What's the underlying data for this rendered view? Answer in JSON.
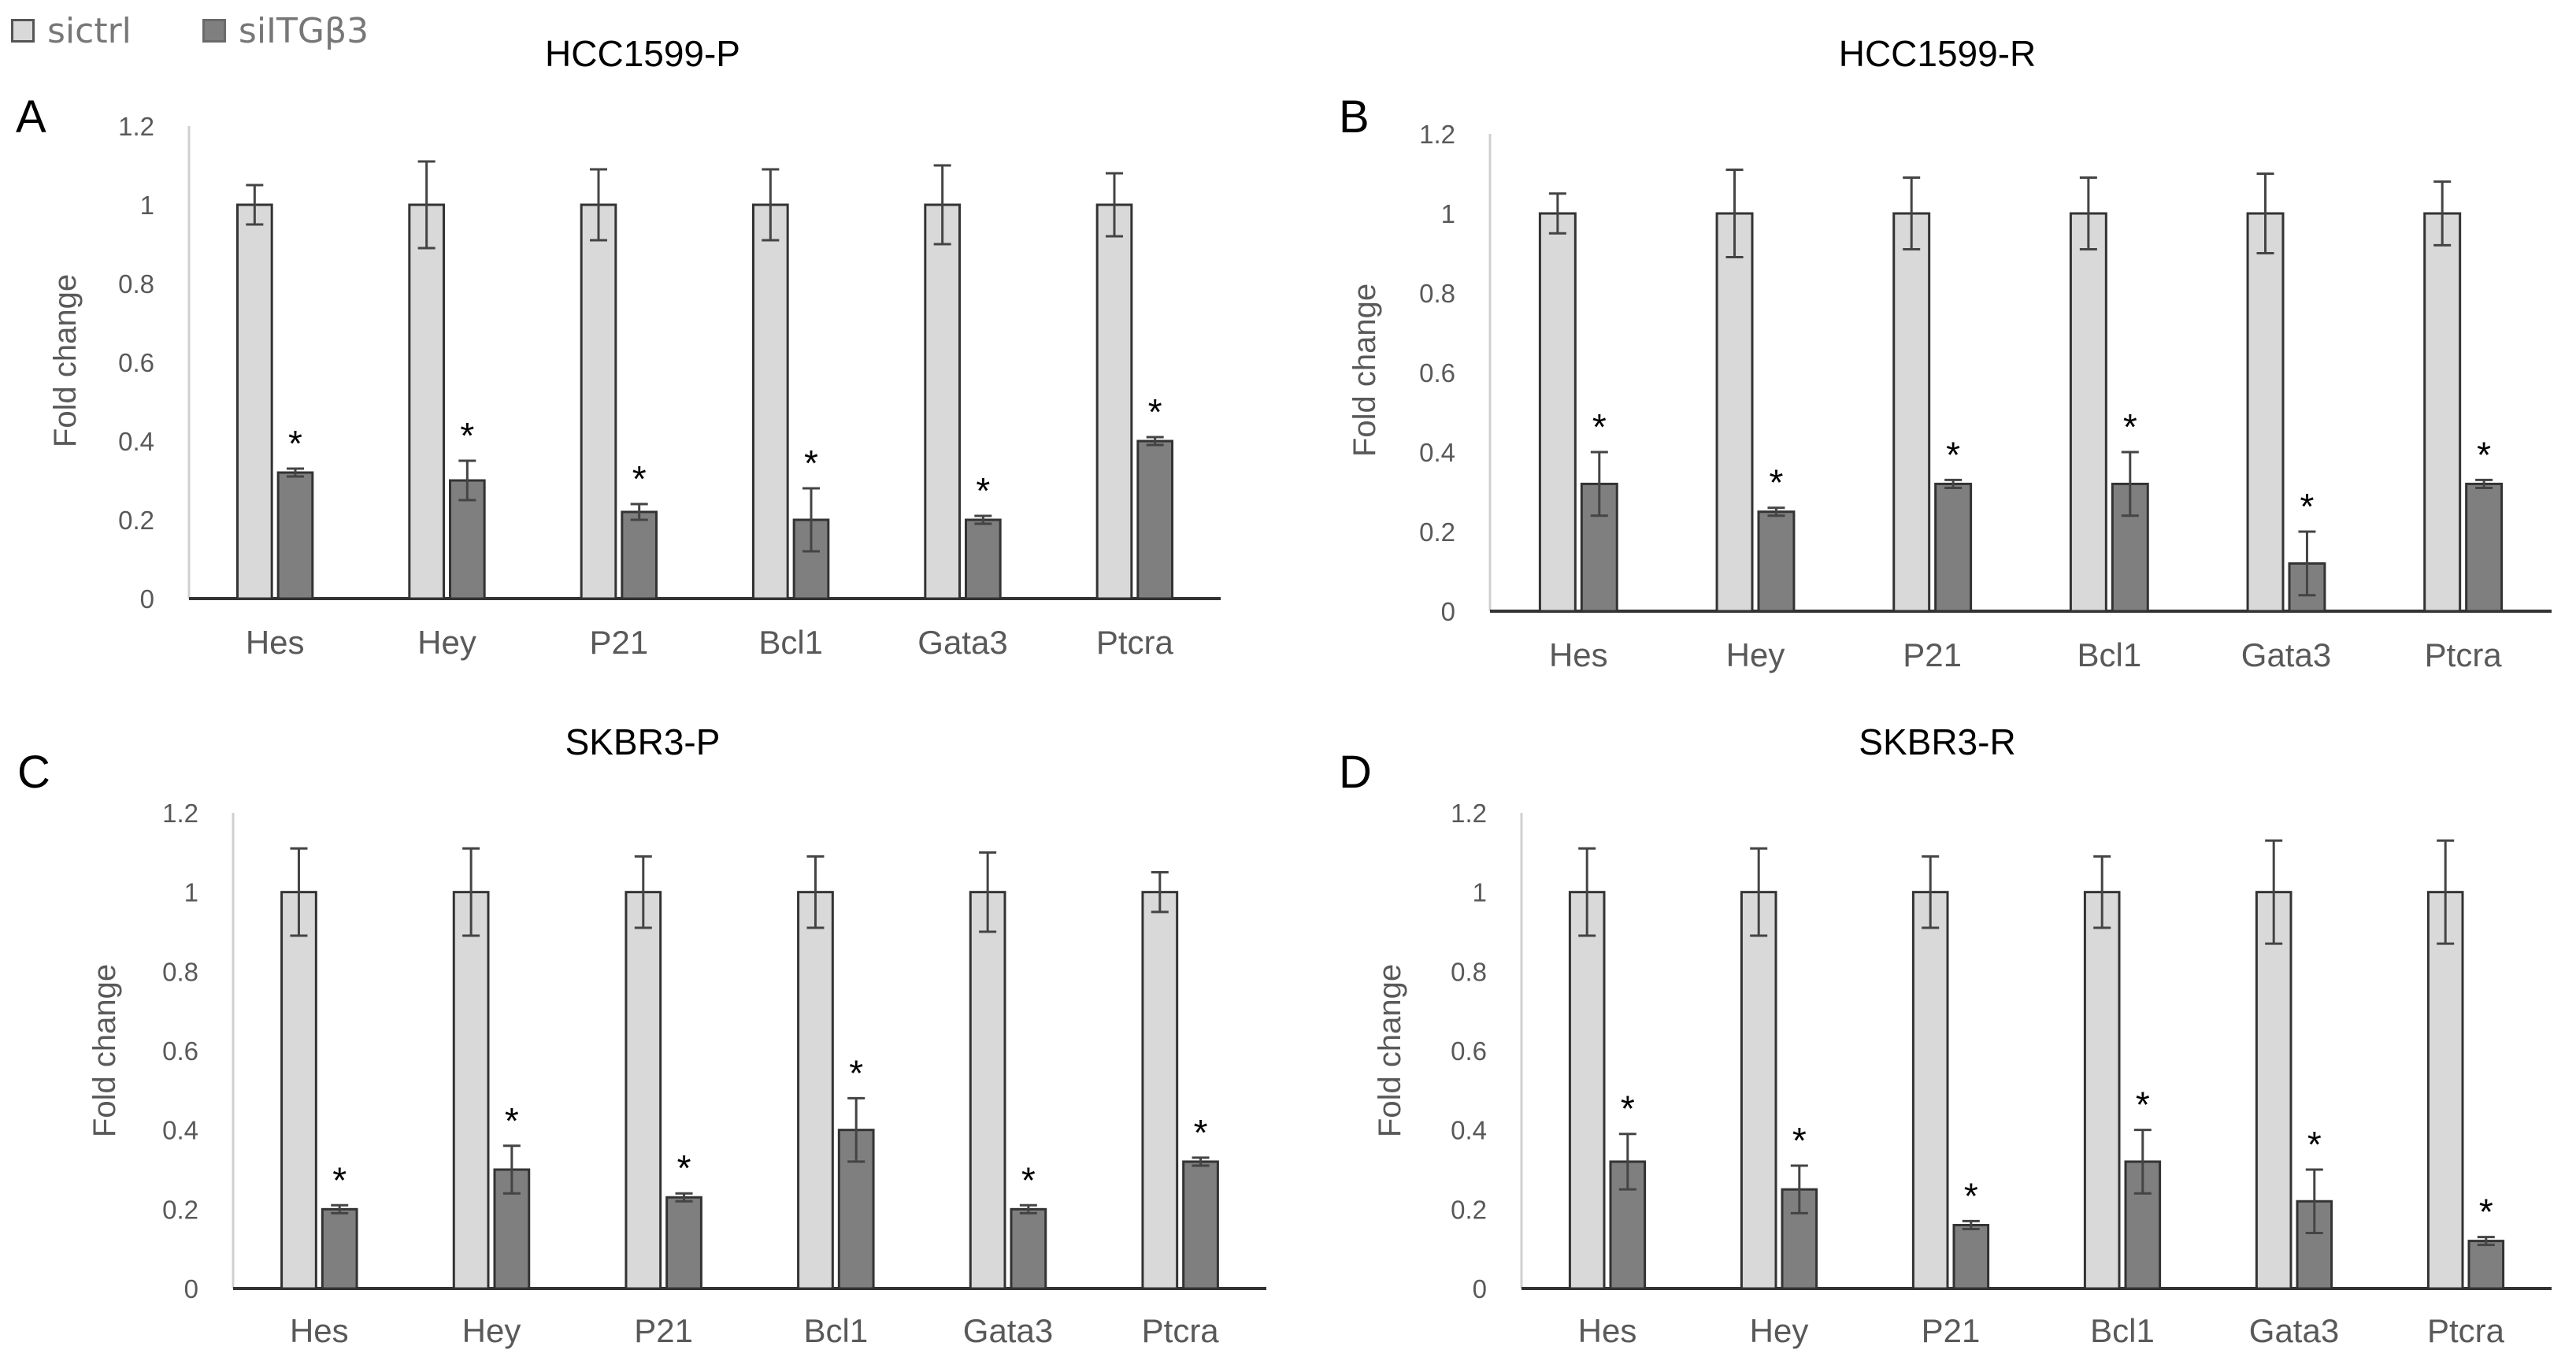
{
  "legend": [
    {
      "label": "sictrl",
      "color": "#d9d9d9"
    },
    {
      "label": "siITGβ3",
      "color": "#7f7f7f"
    }
  ],
  "colors": {
    "ctrl": "#d9d9d9",
    "ctrl_stroke": "#333333",
    "si": "#7f7f7f",
    "si_stroke": "#333333",
    "text": "#595959",
    "axis": "#333333",
    "title": "#000000"
  },
  "chart_data": [
    {
      "panel_label": "A",
      "title": "HCC1599-P",
      "type": "bar",
      "ylabel": "Fold change",
      "ylim": [
        0,
        1.2
      ],
      "yticks": [
        "0",
        "0.2",
        "0.4",
        "0.6",
        "0.8",
        "1",
        "1.2"
      ],
      "categories": [
        "Hes",
        "Hey",
        "P21",
        "Bcl1",
        "Gata3",
        "Ptcra"
      ],
      "series": [
        {
          "name": "sictrl",
          "values": [
            1,
            1,
            1,
            1,
            1,
            1
          ],
          "errors": [
            0.05,
            0.11,
            0.09,
            0.09,
            0.1,
            0.08
          ]
        },
        {
          "name": "siITGβ3",
          "values": [
            0.32,
            0.3,
            0.22,
            0.2,
            0.2,
            0.4
          ],
          "errors": [
            0.01,
            0.05,
            0.02,
            0.08,
            0.01,
            0.01
          ],
          "significance": [
            "*",
            "*",
            "*",
            "*",
            "*",
            "*"
          ]
        }
      ]
    },
    {
      "panel_label": "B",
      "title": "HCC1599-R",
      "type": "bar",
      "ylabel": "Fold change",
      "ylim": [
        0,
        1.2
      ],
      "yticks": [
        "0",
        "0.2",
        "0.4",
        "0.6",
        "0.8",
        "1",
        "1.2"
      ],
      "categories": [
        "Hes",
        "Hey",
        "P21",
        "Bcl1",
        "Gata3",
        "Ptcra"
      ],
      "series": [
        {
          "name": "sictrl",
          "values": [
            1,
            1,
            1,
            1,
            1,
            1
          ],
          "errors": [
            0.05,
            0.11,
            0.09,
            0.09,
            0.1,
            0.08
          ]
        },
        {
          "name": "siITGβ3",
          "values": [
            0.32,
            0.25,
            0.32,
            0.32,
            0.12,
            0.32
          ],
          "errors": [
            0.08,
            0.01,
            0.01,
            0.08,
            0.08,
            0.01
          ],
          "significance": [
            "*",
            "*",
            "*",
            "*",
            "*",
            "*"
          ]
        }
      ]
    },
    {
      "panel_label": "C",
      "title": "SKBR3-P",
      "type": "bar",
      "ylabel": "Fold change",
      "ylim": [
        0,
        1.2
      ],
      "yticks": [
        "0",
        "0.2",
        "0.4",
        "0.6",
        "0.8",
        "1",
        "1.2"
      ],
      "categories": [
        "Hes",
        "Hey",
        "P21",
        "Bcl1",
        "Gata3",
        "Ptcra"
      ],
      "series": [
        {
          "name": "sictrl",
          "values": [
            1,
            1,
            1,
            1,
            1,
            1
          ],
          "errors": [
            0.11,
            0.11,
            0.09,
            0.09,
            0.1,
            0.05
          ]
        },
        {
          "name": "siITGβ3",
          "values": [
            0.2,
            0.3,
            0.23,
            0.4,
            0.2,
            0.32
          ],
          "errors": [
            0.01,
            0.06,
            0.01,
            0.08,
            0.01,
            0.01
          ],
          "significance": [
            "*",
            "*",
            "*",
            "*",
            "*",
            "*"
          ]
        }
      ]
    },
    {
      "panel_label": "D",
      "title": "SKBR3-R",
      "type": "bar",
      "ylabel": "Fold change",
      "ylim": [
        0,
        1.2
      ],
      "yticks": [
        "0",
        "0.2",
        "0.4",
        "0.6",
        "0.8",
        "1",
        "1.2"
      ],
      "categories": [
        "Hes",
        "Hey",
        "P21",
        "Bcl1",
        "Gata3",
        "Ptcra"
      ],
      "series": [
        {
          "name": "sictrl",
          "values": [
            1,
            1,
            1,
            1,
            1,
            1
          ],
          "errors": [
            0.11,
            0.11,
            0.09,
            0.09,
            0.13,
            0.13
          ]
        },
        {
          "name": "siITGβ3",
          "values": [
            0.32,
            0.25,
            0.16,
            0.32,
            0.22,
            0.12
          ],
          "errors": [
            0.07,
            0.06,
            0.01,
            0.08,
            0.08,
            0.01
          ],
          "significance": [
            "*",
            "*",
            "*",
            "*",
            "*",
            "*"
          ]
        }
      ]
    }
  ]
}
